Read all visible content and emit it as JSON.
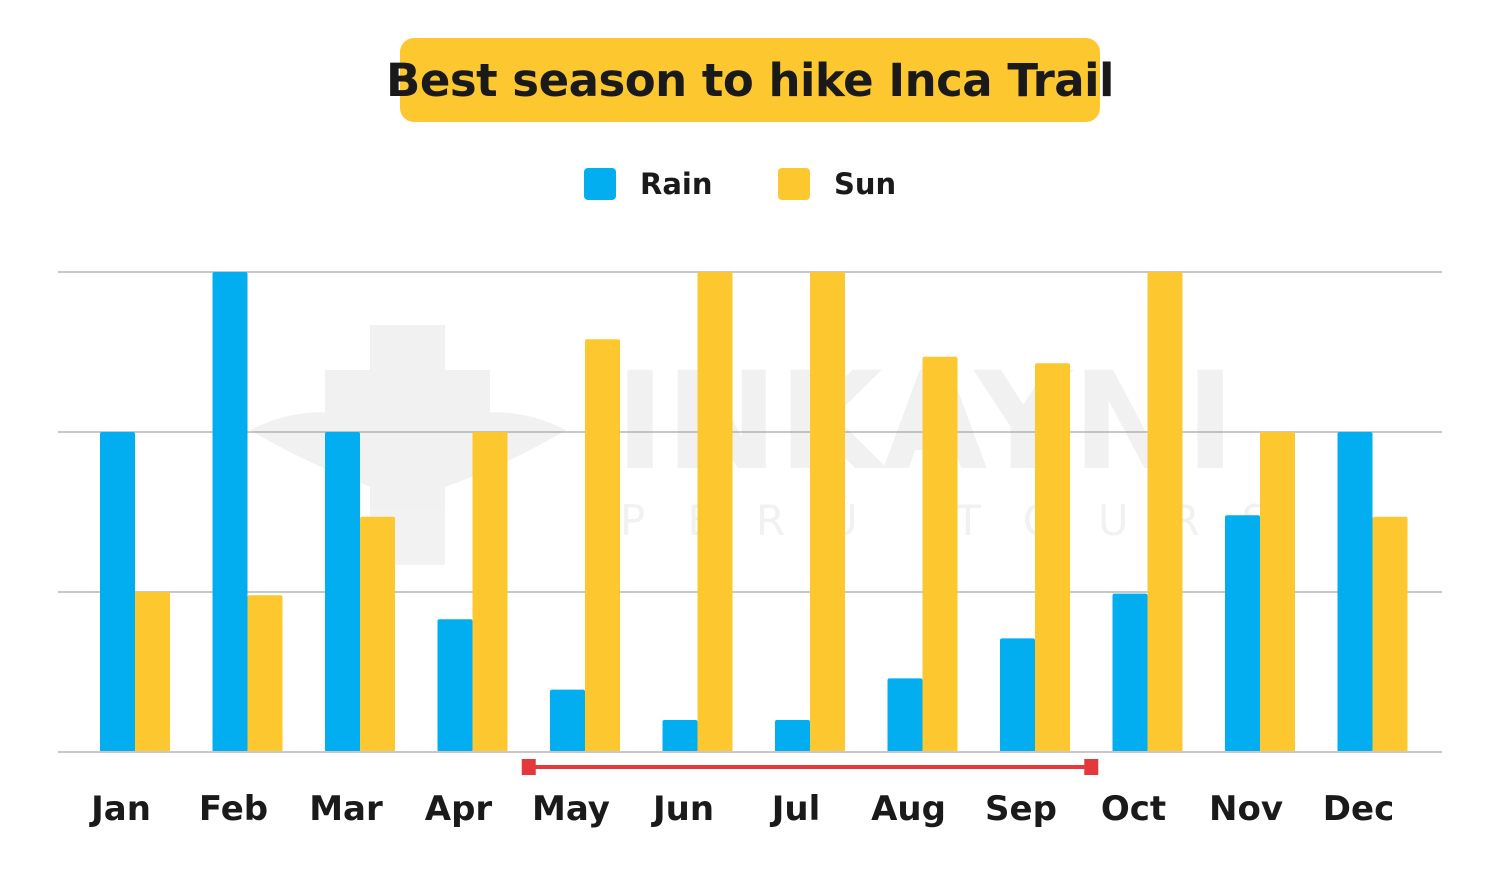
{
  "chart_data": {
    "type": "bar",
    "title": "Best season to hike Inca Trail",
    "categories": [
      "Jan",
      "Feb",
      "Mar",
      "Apr",
      "May",
      "Jun",
      "Jul",
      "Aug",
      "Sep",
      "Oct",
      "Nov",
      "Dec"
    ],
    "series": [
      {
        "name": "Rain",
        "color": "#02aeef",
        "values": [
          2,
          3,
          2,
          0.83,
          0.39,
          0.2,
          0.2,
          0.46,
          0.71,
          0.99,
          1.48,
          2
        ]
      },
      {
        "name": "Sun",
        "color": "#fdc72f",
        "values": [
          1,
          0.98,
          1.47,
          2,
          2.58,
          3,
          3,
          2.47,
          2.43,
          3,
          2,
          1.47
        ]
      }
    ],
    "ylim": [
      0,
      3
    ],
    "grid": true,
    "legend": "top-center",
    "highlight_range": {
      "from": "May",
      "to": "Sep",
      "color": "#e5383b"
    }
  },
  "watermark": {
    "name": "INKAYNI",
    "subtitle": "PERÚ TOURS"
  }
}
